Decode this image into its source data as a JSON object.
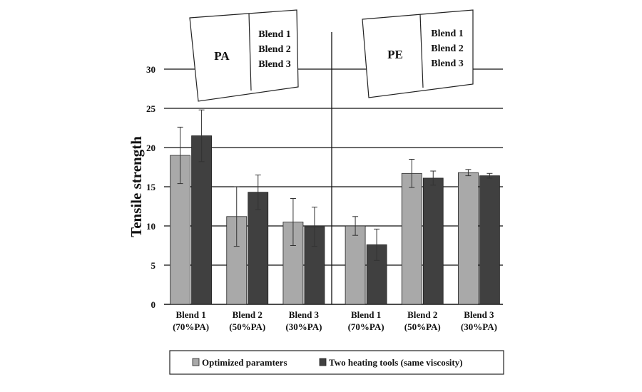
{
  "chart_data": {
    "type": "bar",
    "ylabel": "Tensile strength",
    "ylim": [
      0,
      30
    ],
    "yticks": [
      0,
      5,
      10,
      15,
      20,
      25,
      30
    ],
    "grid": true,
    "categories": [
      {
        "line1": "Blend 1",
        "line2": "(70%PA)"
      },
      {
        "line1": "Blend 2",
        "line2": "(50%PA)"
      },
      {
        "line1": "Blend 3",
        "line2": "(30%PA)"
      },
      {
        "line1": "Blend 1",
        "line2": "(70%PA)"
      },
      {
        "line1": "Blend 2",
        "line2": "(50%PA)"
      },
      {
        "line1": "Blend 3",
        "line2": "(30%PA)"
      }
    ],
    "series": [
      {
        "name": "Optimized paramters",
        "color": "#a9a9a9",
        "values": [
          19.0,
          11.2,
          10.5,
          10.0,
          16.7,
          16.8
        ],
        "errors": [
          3.6,
          3.8,
          3.0,
          1.2,
          1.8,
          0.4
        ]
      },
      {
        "name": "Two heating tools (same viscosity)",
        "color": "#404040",
        "values": [
          21.5,
          14.3,
          9.9,
          7.6,
          16.1,
          16.4
        ],
        "errors": [
          3.3,
          2.2,
          2.5,
          2.0,
          0.9,
          0.3
        ]
      }
    ],
    "legend_position": "bottom",
    "group_boxes": [
      {
        "name": "PA",
        "items": [
          "Blend 1",
          "Blend 2",
          "Blend 3"
        ]
      },
      {
        "name": "PE",
        "items": [
          "Blend 1",
          "Blend 2",
          "Blend 3"
        ]
      }
    ]
  }
}
